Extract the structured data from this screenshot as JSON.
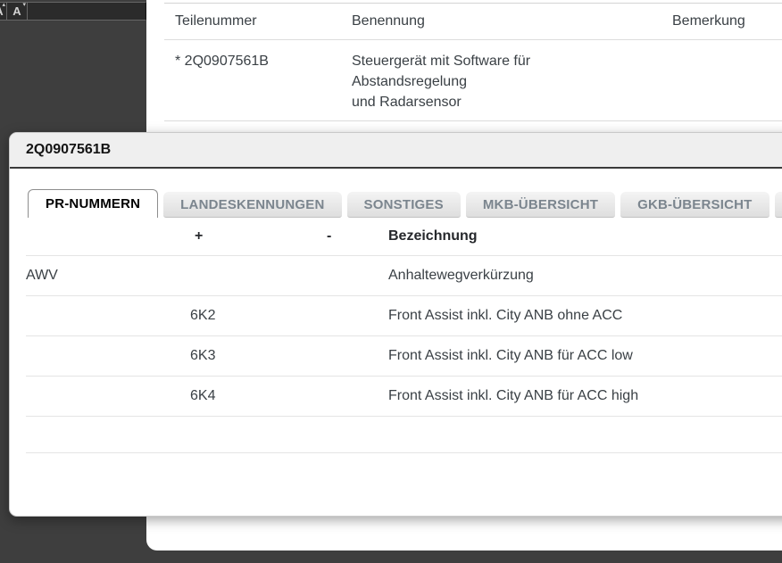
{
  "toolbar": {
    "buttons": [
      {
        "label": "A",
        "name": "font-increase"
      },
      {
        "label": "A",
        "name": "font-decrease"
      }
    ]
  },
  "parts_table": {
    "columns": [
      "Teilenummer",
      "Benennung",
      "Bemerkung"
    ],
    "rows": [
      {
        "teilenummer": "* 2Q0907561B",
        "benennung_lines": [
          "Steuergerät mit Software für",
          "Abstandsregelung",
          "und Radarsensor"
        ],
        "bemerkung": ""
      }
    ]
  },
  "modal": {
    "title": "2Q0907561B",
    "tabs": [
      {
        "label": "PR-NUMMERN",
        "active": true
      },
      {
        "label": "LANDESKENNUNGEN",
        "active": false
      },
      {
        "label": "SONSTIGES",
        "active": false
      },
      {
        "label": "MKB-ÜBERSICHT",
        "active": false
      },
      {
        "label": "GKB-ÜBERSICHT",
        "active": false
      },
      {
        "label": "",
        "active": false
      }
    ],
    "table": {
      "columns": [
        "",
        "+",
        "-",
        "Bezeichnung"
      ],
      "rows": [
        {
          "code": "AWV",
          "plus": "",
          "minus": "",
          "bezeichnung": "Anhaltewegverkürzung"
        },
        {
          "code": "",
          "plus": "6K2",
          "minus": "",
          "bezeichnung": "Front Assist inkl. City ANB ohne ACC"
        },
        {
          "code": "",
          "plus": "6K3",
          "minus": "",
          "bezeichnung": "Front Assist inkl. City ANB für ACC low"
        },
        {
          "code": "",
          "plus": "6K4",
          "minus": "",
          "bezeichnung": "Front Assist inkl. City ANB für ACC high"
        },
        {
          "code": "",
          "plus": "",
          "minus": "",
          "bezeichnung": ""
        }
      ]
    }
  },
  "colors": {
    "page_background": "#3e3e3e",
    "toolbar_background": "#2b2b2b",
    "panel_background": "#ffffff",
    "modal_header_background": "#efefef",
    "modal_header_border": "#3a3a3a",
    "inactive_tab_text": "#7b858e",
    "body_text": "#3a4045",
    "divider": "#e4e4e4"
  }
}
